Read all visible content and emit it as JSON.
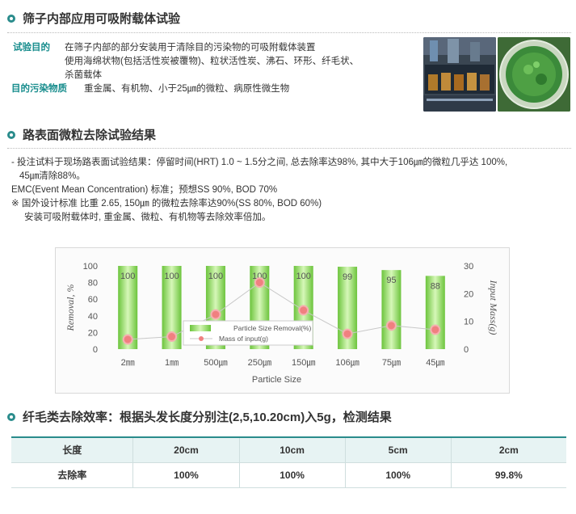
{
  "section1": {
    "title": "筛子内部应用可吸附载体试验",
    "purpose_label": "试验目的",
    "purpose_lines": [
      "在筛子内部的部分安装用于清除目的污染物的可吸附载体装置",
      "使用海绵状物(包括活性炭被覆物)、粒状活性炭、沸石、环形、纤毛状、",
      "杀菌载体"
    ],
    "pollutant_label": "目的污染物质",
    "pollutant_text": "重金属、有机物、小于25㎛的微粒、病原性微生物"
  },
  "section2": {
    "title": "路表面微粒去除试验结果",
    "line1": "- 投注试料于现场路表面试验结果：停留时间(HRT) 1.0 ~ 1.5分之间,  总去除率达98%,  其中大于106㎛的微粒几乎达 100%,",
    "line2": "45㎛清除88%。",
    "line3": "EMC(Event Mean Concentration) 标准；预想SS 90%, BOD 70%",
    "line4": "※ 国外设计标准 比重 2.65,  150㎛ 的微粒去除率达90%(SS 80%, BOD 60%)",
    "line5": "安装可吸附载体时,  重金属、微粒、有机物等去除效率倍加。"
  },
  "chart_data": {
    "type": "bar",
    "categories": [
      "2㎜",
      "1㎜",
      "500㎛",
      "250㎛",
      "150㎛",
      "106㎛",
      "75㎛",
      "45㎛"
    ],
    "series": [
      {
        "name": "Particle Size Removal(%)",
        "type": "bar",
        "values": [
          100,
          100,
          100,
          100,
          100,
          99,
          95,
          88
        ],
        "axis": "left"
      },
      {
        "name": "Mass of input(g)",
        "type": "line",
        "values": [
          3.5,
          4.5,
          12.5,
          24,
          14,
          5.5,
          8.5,
          7
        ],
        "axis": "right"
      }
    ],
    "data_labels": [
      "100",
      "100",
      "100",
      "100",
      "100",
      "99",
      "95",
      "88"
    ],
    "xlabel": "Particle Size",
    "ylabel": "Removal, %",
    "y2label": "Input Mass(g)",
    "ylim": [
      0,
      100
    ],
    "y2lim": [
      0,
      30
    ],
    "yticks": [
      "0",
      "20",
      "40",
      "60",
      "80",
      "100"
    ],
    "y2ticks": [
      "0",
      "10",
      "20",
      "30"
    ],
    "legend_position": "center",
    "colors": {
      "bar": "#8ee05a",
      "line": "#f08080",
      "label_highlight": "#e0206a"
    }
  },
  "section3": {
    "title": "纤毛类去除效率：根据头发长度分别注(2,5,10.20cm)入5g，检测结果",
    "table": {
      "headers": [
        "长度",
        "20cm",
        "10cm",
        "5cm",
        "2cm"
      ],
      "row": [
        "去除率",
        "100%",
        "100%",
        "100%",
        "99.8%"
      ]
    }
  },
  "colors": {
    "accent": "#2a8c8c",
    "label": "#168c8c"
  }
}
